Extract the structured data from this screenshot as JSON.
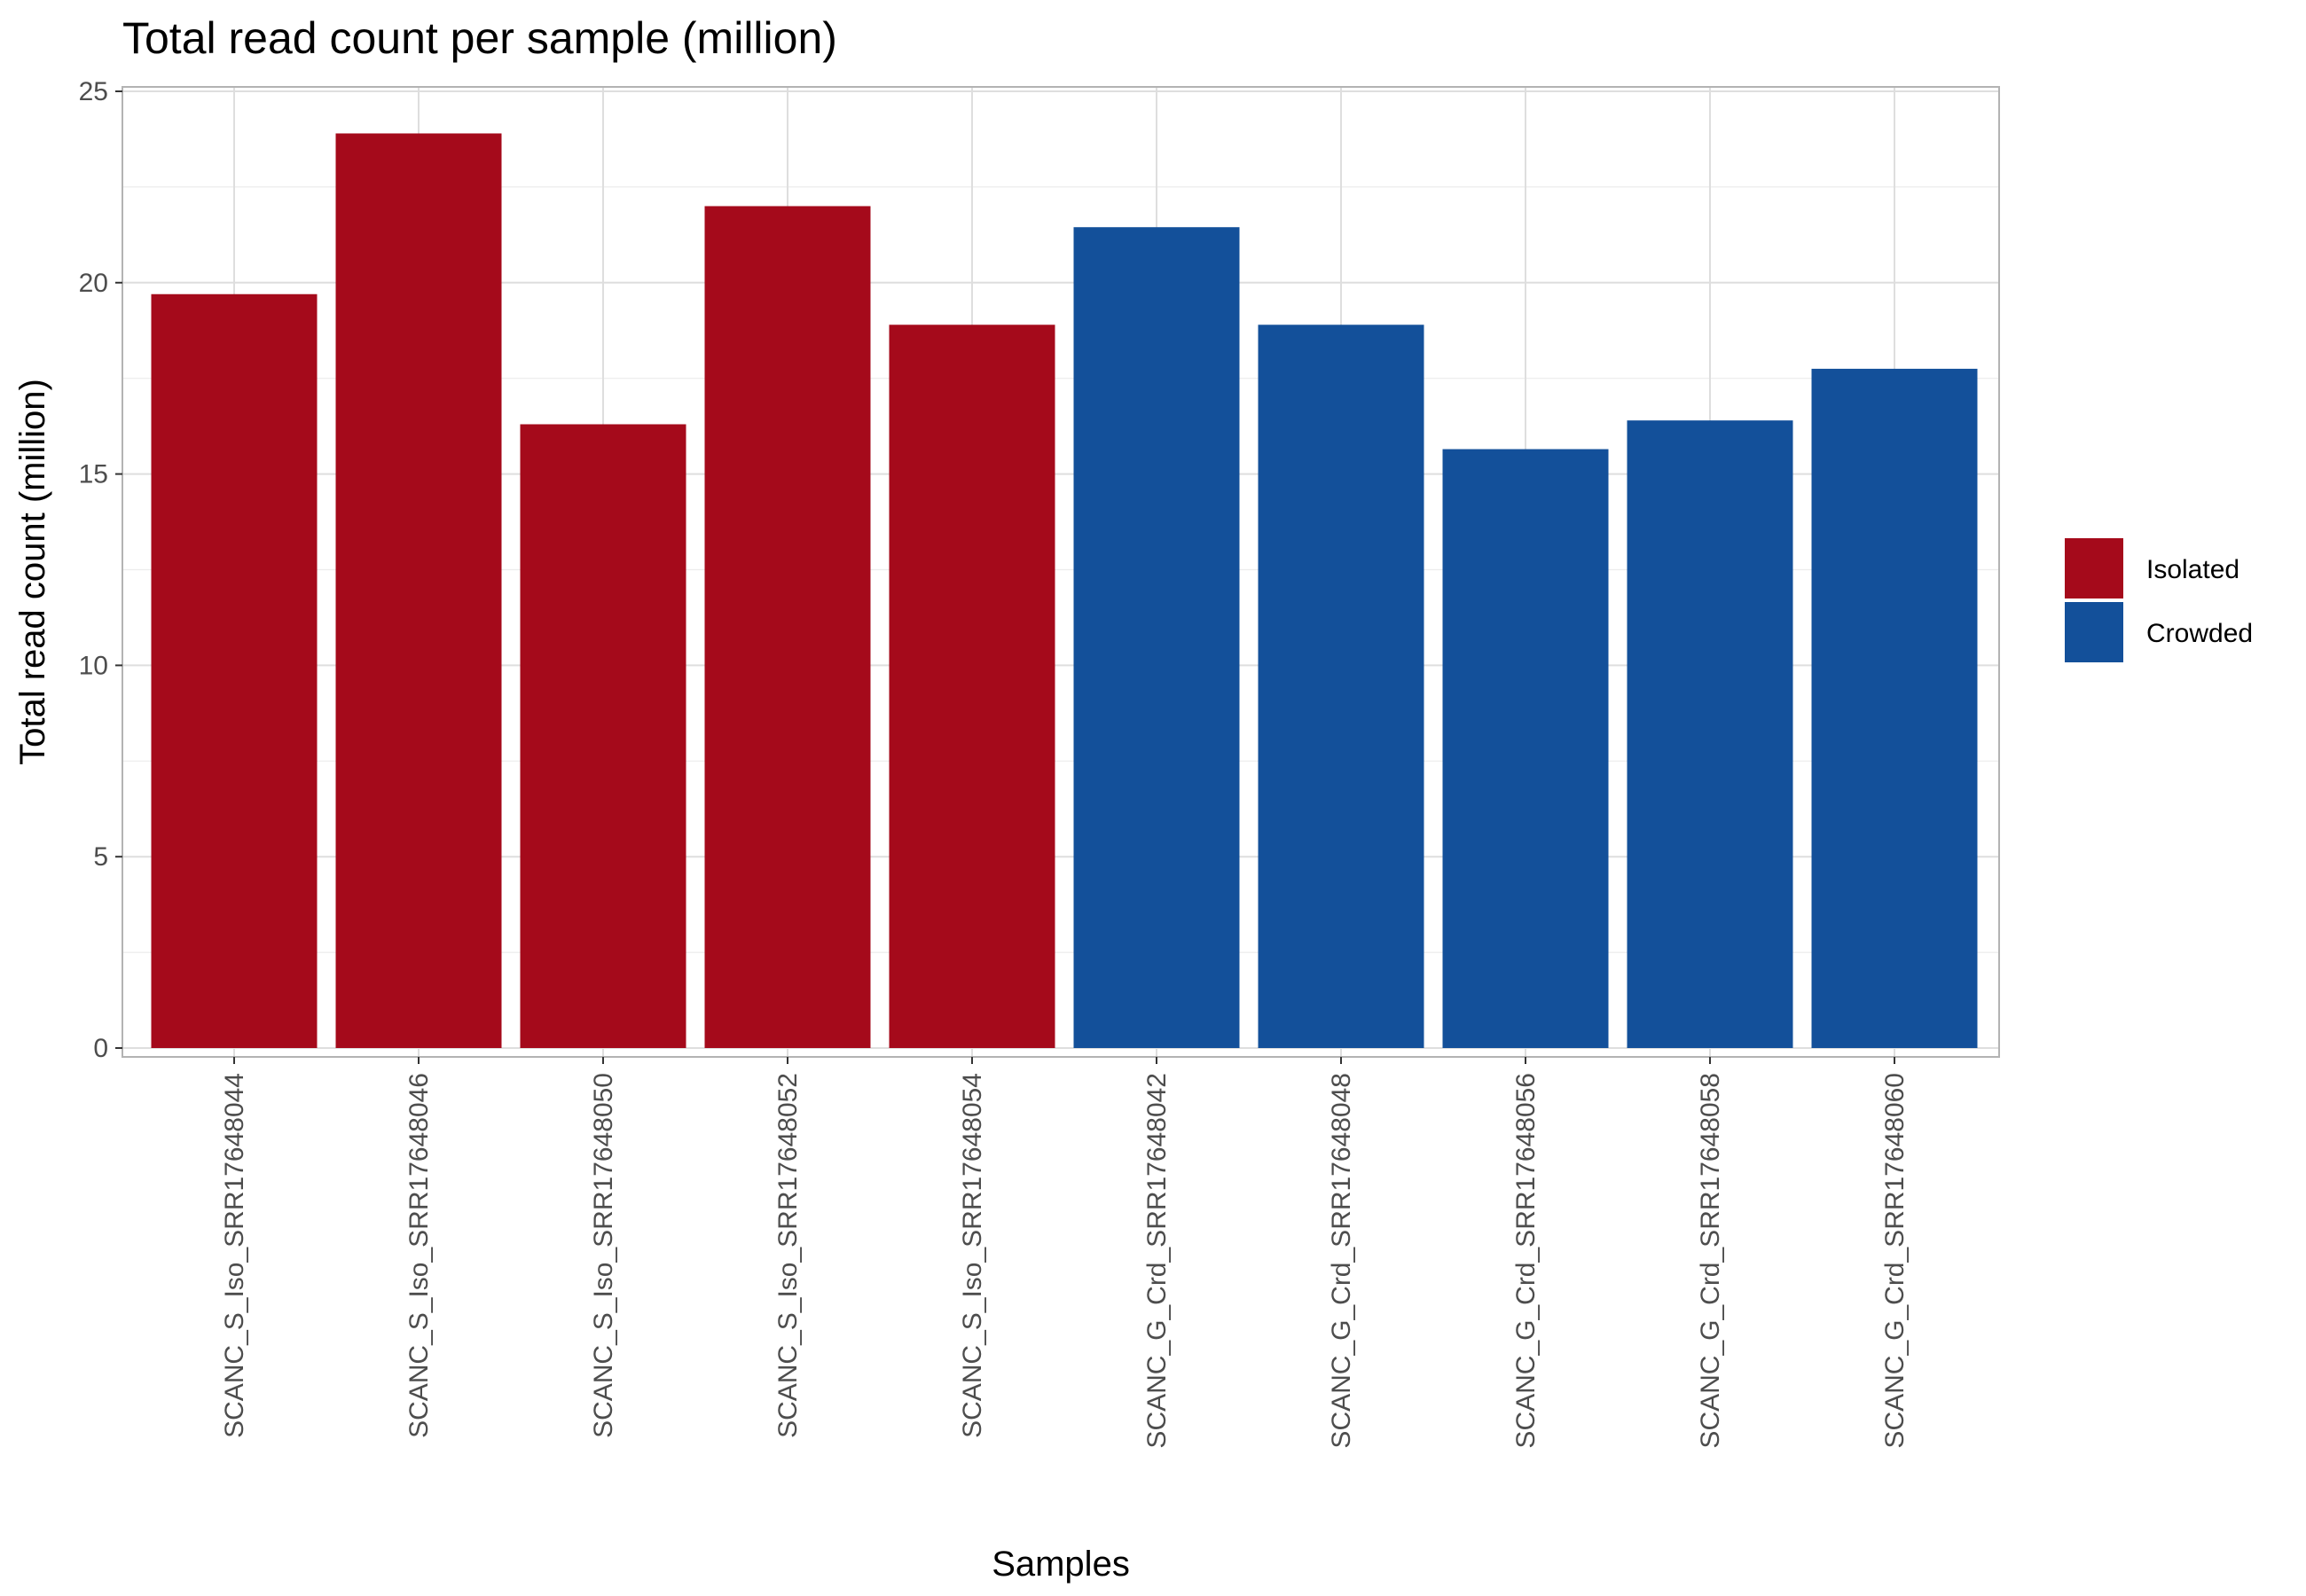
{
  "chart_data": {
    "type": "bar",
    "title": "Total read count per sample (million)",
    "xlabel": "Samples",
    "ylabel": "Total read count (million)",
    "ylim": [
      0,
      25
    ],
    "yticks": [
      0,
      5,
      10,
      15,
      20,
      25
    ],
    "grid": true,
    "legend_position": "right",
    "categories": [
      "SCANC_S_Iso_SRR17648044",
      "SCANC_S_Iso_SRR17648046",
      "SCANC_S_Iso_SRR17648050",
      "SCANC_S_Iso_SRR17648052",
      "SCANC_S_Iso_SRR17648054",
      "SCANC_G_Crd_SRR17648042",
      "SCANC_G_Crd_SRR17648048",
      "SCANC_G_Crd_SRR17648056",
      "SCANC_G_Crd_SRR17648058",
      "SCANC_G_Crd_SRR17648060"
    ],
    "values": [
      19.7,
      23.9,
      16.3,
      22.0,
      18.9,
      21.45,
      18.9,
      15.65,
      16.4,
      17.75
    ],
    "groups": [
      "Isolated",
      "Isolated",
      "Isolated",
      "Isolated",
      "Isolated",
      "Crowded",
      "Crowded",
      "Crowded",
      "Crowded",
      "Crowded"
    ],
    "legend": [
      {
        "name": "Isolated",
        "color": "#A50A1B"
      },
      {
        "name": "Crowded",
        "color": "#13509A"
      }
    ]
  }
}
